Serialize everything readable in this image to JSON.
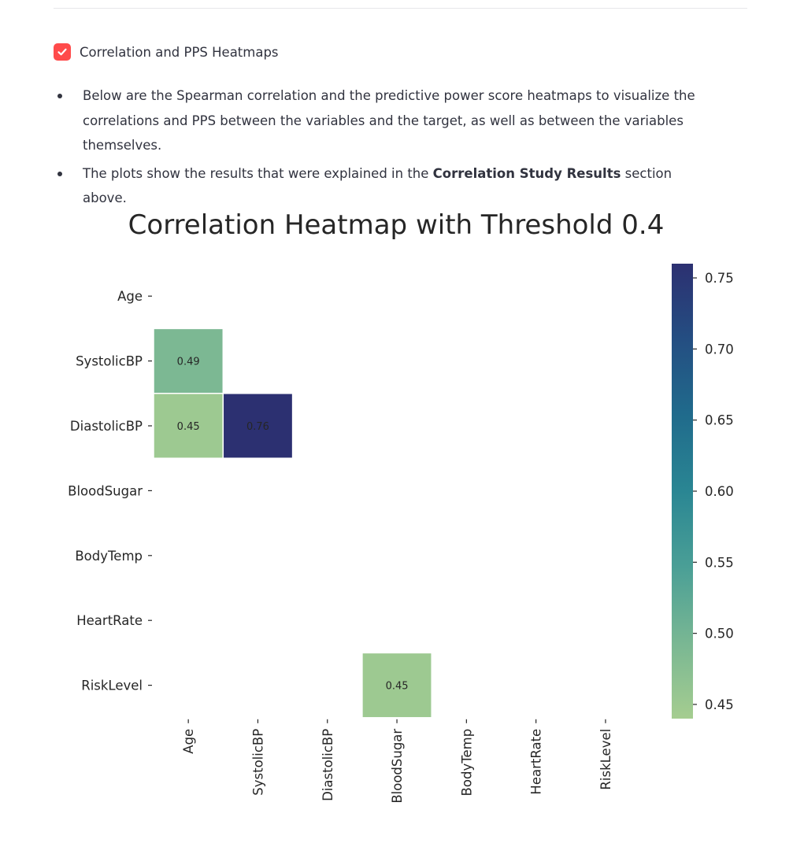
{
  "section": {
    "checkbox_label": "Correlation and PPS Heatmaps",
    "checked": true,
    "accent_color": "#ff4b4b"
  },
  "notes": [
    {
      "text": "Below are the Spearman correlation and the predictive power score heatmaps to visualize the correlations and PPS between the variables and the target, as well as between the variables themselves."
    },
    {
      "before": "The plots show the results that were explained in the ",
      "bold": "Correlation Study Results",
      "after": " section above."
    }
  ],
  "chart_data": {
    "type": "heatmap",
    "title": "Correlation Heatmap with Threshold 0.4",
    "variables": [
      "Age",
      "SystolicBP",
      "DiastolicBP",
      "BloodSugar",
      "BodyTemp",
      "HeartRate",
      "RiskLevel"
    ],
    "cells": [
      {
        "row": "SystolicBP",
        "col": "Age",
        "value": 0.49,
        "label": "0.49"
      },
      {
        "row": "DiastolicBP",
        "col": "Age",
        "value": 0.45,
        "label": "0.45"
      },
      {
        "row": "DiastolicBP",
        "col": "SystolicBP",
        "value": 0.76,
        "label": "0.76"
      },
      {
        "row": "RiskLevel",
        "col": "BloodSugar",
        "value": 0.45,
        "label": "0.45"
      }
    ],
    "colorbar": {
      "ticks": [
        "0.45",
        "0.50",
        "0.55",
        "0.60",
        "0.65",
        "0.70",
        "0.75"
      ],
      "tick_values": [
        0.45,
        0.5,
        0.55,
        0.6,
        0.65,
        0.7,
        0.75
      ],
      "range": [
        0.44,
        0.76
      ],
      "colormap": "crest",
      "colors": [
        "#a5cd90",
        "#79b793",
        "#4a9f96",
        "#2a8693",
        "#206b8c",
        "#244e82",
        "#2c3071"
      ]
    }
  }
}
